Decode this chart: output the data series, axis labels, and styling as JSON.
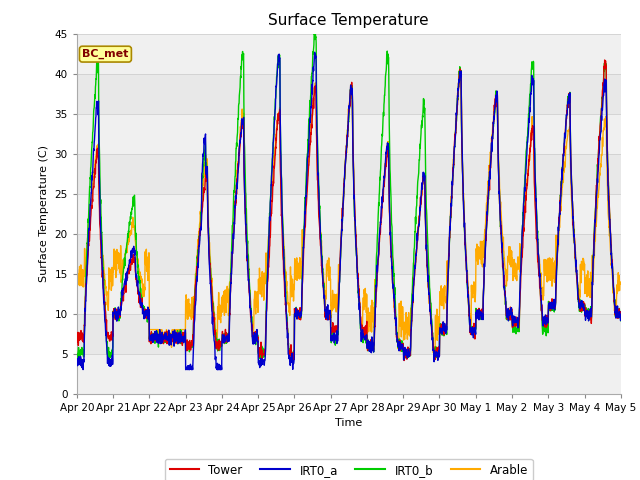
{
  "title": "Surface Temperature",
  "ylabel": "Surface Temperature (C)",
  "xlabel": "Time",
  "ylim": [
    0,
    45
  ],
  "xlim": [
    0,
    15
  ],
  "annotation": "BC_met",
  "legend_entries": [
    "Tower",
    "IRT0_a",
    "IRT0_b",
    "Arable"
  ],
  "line_colors": [
    "#dd0000",
    "#0000cc",
    "#00cc00",
    "#ffaa00"
  ],
  "background_color": "#ffffff",
  "axes_background": "#f0f0f0",
  "xtick_labels": [
    "Apr 20",
    "Apr 21",
    "Apr 22",
    "Apr 23",
    "Apr 24",
    "Apr 25",
    "Apr 26",
    "Apr 27",
    "Apr 28",
    "Apr 29",
    "Apr 30",
    "May 1",
    "May 2",
    "May 3",
    "May 4",
    "May 5"
  ],
  "xtick_positions": [
    0,
    1,
    2,
    3,
    4,
    5,
    6,
    7,
    8,
    9,
    10,
    11,
    12,
    13,
    14,
    15
  ],
  "ytick_labels": [
    "0",
    "5",
    "10",
    "15",
    "20",
    "25",
    "30",
    "35",
    "40",
    "45"
  ],
  "ytick_positions": [
    0,
    5,
    10,
    15,
    20,
    25,
    30,
    35,
    40,
    45
  ],
  "grid_band_color": "#e0e0e0",
  "grid_line_color": "#d8d8d8"
}
